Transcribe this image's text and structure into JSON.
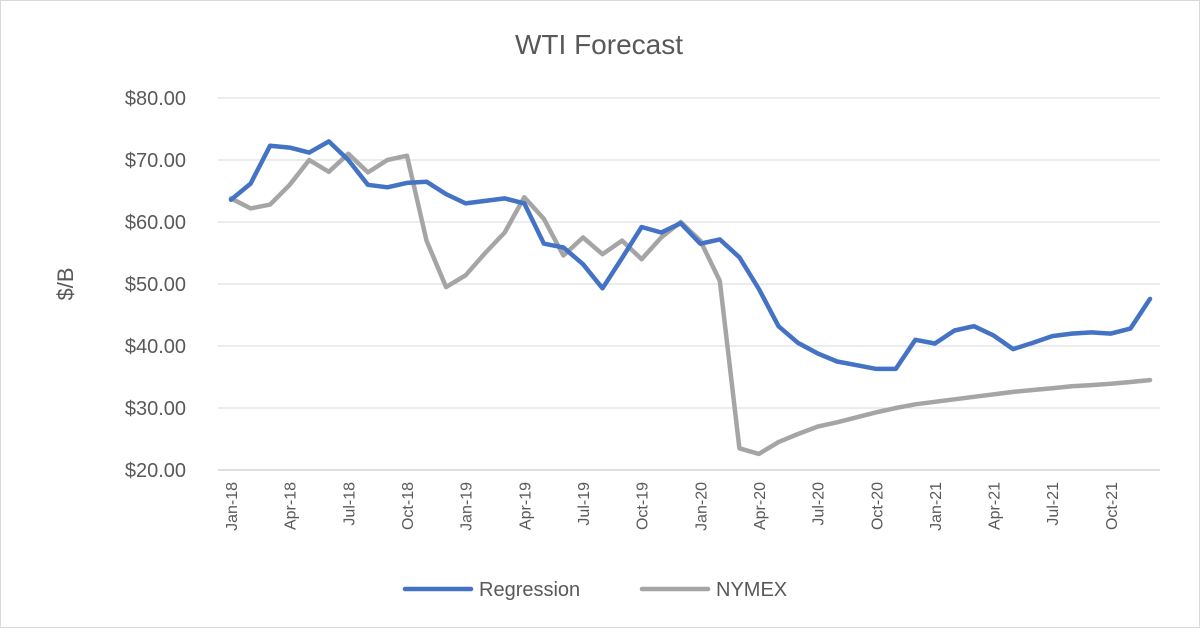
{
  "chart_data": {
    "type": "line",
    "title": "WTI Forecast",
    "xlabel": "",
    "ylabel": "$/B",
    "ylim": [
      20,
      80
    ],
    "y_ticks": [
      "$20.00",
      "$30.00",
      "$40.00",
      "$50.00",
      "$60.00",
      "$70.00",
      "$80.00"
    ],
    "y_tick_values": [
      20,
      30,
      40,
      50,
      60,
      70,
      80
    ],
    "x_tick_labels": [
      "Jan-18",
      "Apr-18",
      "Jul-18",
      "Oct-18",
      "Jan-19",
      "Apr-19",
      "Jul-19",
      "Oct-19",
      "Jan-20",
      "Apr-20",
      "Jul-20",
      "Oct-20",
      "Jan-21",
      "Apr-21",
      "Jul-21",
      "Oct-21"
    ],
    "x": [
      "Jan-18",
      "Feb-18",
      "Mar-18",
      "Apr-18",
      "May-18",
      "Jun-18",
      "Jul-18",
      "Aug-18",
      "Sep-18",
      "Oct-18",
      "Nov-18",
      "Dec-18",
      "Jan-19",
      "Feb-19",
      "Mar-19",
      "Apr-19",
      "May-19",
      "Jun-19",
      "Jul-19",
      "Aug-19",
      "Sep-19",
      "Oct-19",
      "Nov-19",
      "Dec-19",
      "Jan-20",
      "Feb-20",
      "Mar-20",
      "Apr-20",
      "May-20",
      "Jun-20",
      "Jul-20",
      "Aug-20",
      "Sep-20",
      "Oct-20",
      "Nov-20",
      "Dec-20",
      "Jan-21",
      "Feb-21",
      "Mar-21",
      "Apr-21",
      "May-21",
      "Jun-21",
      "Jul-21",
      "Aug-21",
      "Sep-21",
      "Oct-21",
      "Nov-21",
      "Dec-21"
    ],
    "series": [
      {
        "name": "Regression",
        "color": "#4472c4",
        "values": [
          63.6,
          66.2,
          72.3,
          72.0,
          71.2,
          73.0,
          70.0,
          66.0,
          65.6,
          66.3,
          66.5,
          64.5,
          63.0,
          63.4,
          63.8,
          63.0,
          56.5,
          55.9,
          53.2,
          49.3,
          54.2,
          59.2,
          58.3,
          59.8,
          56.5,
          57.2,
          54.3,
          49.2,
          43.2,
          40.5,
          38.8,
          37.5,
          36.9,
          36.3,
          36.3,
          41.0,
          40.4,
          42.5,
          43.2,
          41.7,
          39.5,
          40.5,
          41.6,
          42.0,
          42.2,
          42.0,
          42.8,
          47.6
        ]
      },
      {
        "name": "NYMEX",
        "color": "#a5a5a5",
        "values": [
          63.8,
          62.2,
          62.8,
          66.0,
          70.0,
          68.1,
          71.0,
          68.0,
          70.0,
          70.7,
          57.0,
          49.5,
          51.4,
          55.0,
          58.3,
          64.0,
          60.5,
          54.6,
          57.5,
          54.8,
          57.0,
          54.0,
          57.5,
          60.0,
          57.0,
          50.5,
          23.5,
          22.6,
          24.5,
          25.8,
          27.0,
          27.7,
          28.5,
          29.3,
          30.0,
          30.6,
          31.0,
          31.4,
          31.8,
          32.2,
          32.6,
          32.9,
          33.2,
          33.5,
          33.7,
          33.9,
          34.2,
          34.5
        ]
      }
    ],
    "legend": {
      "position": "bottom",
      "entries": [
        "Regression",
        "NYMEX"
      ]
    },
    "grid": true
  }
}
